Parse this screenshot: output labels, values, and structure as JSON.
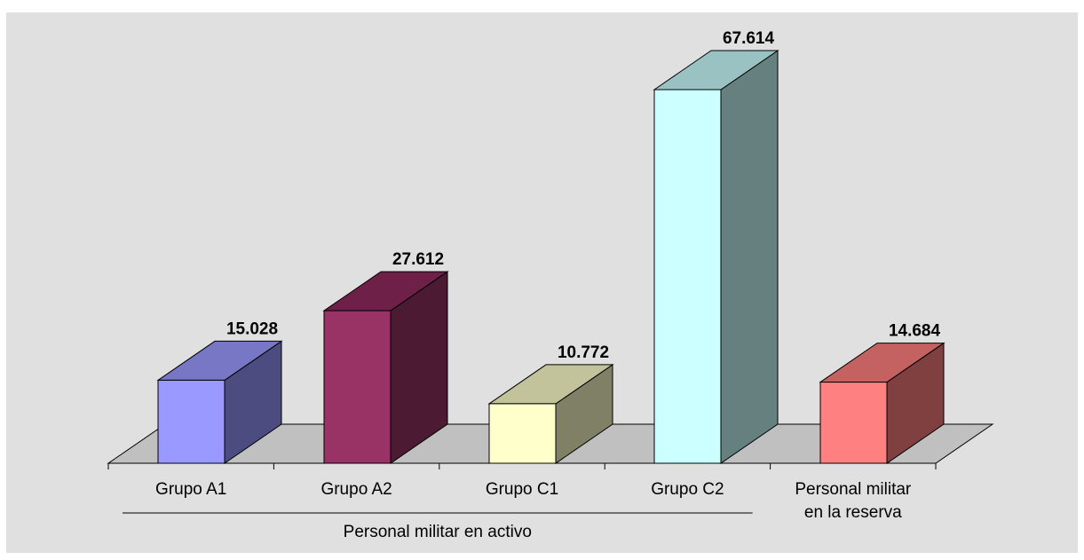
{
  "chart_data": {
    "type": "bar",
    "categories": [
      [
        "Grupo A1"
      ],
      [
        "Grupo A2"
      ],
      [
        "Grupo C1"
      ],
      [
        "Grupo C2"
      ],
      [
        "Personal militar",
        "en la reserva"
      ]
    ],
    "values": [
      15028,
      27612,
      10772,
      67614,
      14684
    ],
    "value_labels": [
      "15.028",
      "27.612",
      "10.772",
      "67.614",
      "14.684"
    ],
    "group_label": "Personal militar en activo",
    "group_span_categories": 4,
    "title": "",
    "xlabel": "",
    "ylabel": "",
    "ylim": [
      0,
      67614
    ],
    "grid": false,
    "legend": "none",
    "style_3d": true
  },
  "colors": {
    "background": "#e0e0e0",
    "floor": "#c0c0c0",
    "bars": [
      {
        "front": "#9999ff",
        "top": "#7777c6",
        "side": "#4c4c80"
      },
      {
        "front": "#993366",
        "top": "#6f2048",
        "side": "#4d1a33"
      },
      {
        "front": "#ffffcc",
        "top": "#c2c29b",
        "side": "#808066"
      },
      {
        "front": "#ccffff",
        "top": "#9bc2c2",
        "side": "#668080"
      },
      {
        "front": "#ff8080",
        "top": "#c46262",
        "side": "#804040"
      }
    ]
  }
}
